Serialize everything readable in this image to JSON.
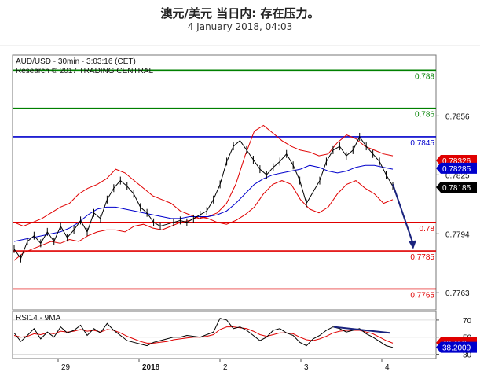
{
  "header": {
    "title": "澳元/美元 当日内: 存在压力。",
    "subtitle": "4 January 2018, 04:03"
  },
  "chart_info": {
    "line1": "AUD/USD - 30min - 3:03:16 (CET)",
    "line2": "Research © 2017 TRADING CENTRAL"
  },
  "rsi_info": {
    "label": "RSI14 - 9MA"
  },
  "colors": {
    "resistance": "#008000",
    "pivot": "#0000cc",
    "support": "#e00000",
    "bollinger": "#e00000",
    "ma": "#0000cc",
    "price": "#000000",
    "arrow": "#1a237e",
    "rsi_ma": "#e00000"
  },
  "chart_data": {
    "type": "line",
    "title": "澳元/美元 当日内: 存在压力。",
    "xlabel": "",
    "ylabel": "",
    "x_ticks": [
      "29",
      "2018",
      "2",
      "3",
      "4"
    ],
    "y_ticks": [
      "0.7856",
      "0.7825",
      "0.7794",
      "0.7763"
    ],
    "ylim": [
      0.7754,
      0.7888
    ],
    "levels": [
      {
        "label": "0.788",
        "value": 0.788,
        "kind": "resistance"
      },
      {
        "label": "0.786",
        "value": 0.786,
        "kind": "resistance"
      },
      {
        "label": "0.7845",
        "value": 0.7845,
        "kind": "pivot"
      },
      {
        "label": "0.78",
        "value": 0.78,
        "kind": "support"
      },
      {
        "label": "0.7785",
        "value": 0.7785,
        "kind": "support"
      },
      {
        "label": "0.7765",
        "value": 0.7765,
        "kind": "support"
      }
    ],
    "price_badges": [
      {
        "label": "0.78326",
        "value": 0.78326,
        "color": "#e00000"
      },
      {
        "label": "0.78285",
        "value": 0.78285,
        "color": "#0000cc"
      },
      {
        "label": "0.78185",
        "value": 0.78185,
        "color": "#000000"
      }
    ],
    "series": [
      {
        "name": "price",
        "values": [
          0.7786,
          0.7781,
          0.779,
          0.7793,
          0.7789,
          0.7795,
          0.779,
          0.7798,
          0.7792,
          0.7796,
          0.7801,
          0.7795,
          0.7805,
          0.7802,
          0.7812,
          0.7818,
          0.7822,
          0.7819,
          0.7815,
          0.7808,
          0.7805,
          0.78,
          0.7798,
          0.7799,
          0.78,
          0.7801,
          0.78,
          0.7802,
          0.7804,
          0.7806,
          0.7812,
          0.782,
          0.7832,
          0.784,
          0.7843,
          0.7838,
          0.7833,
          0.7828,
          0.7825,
          0.7829,
          0.7832,
          0.7836,
          0.783,
          0.7822,
          0.781,
          0.7816,
          0.7822,
          0.7832,
          0.7838,
          0.784,
          0.7835,
          0.7838,
          0.7845,
          0.784,
          0.7836,
          0.7832,
          0.7825,
          0.7819
        ]
      },
      {
        "name": "bollinger-upper",
        "values": [
          0.78,
          0.7798,
          0.78,
          0.7802,
          0.7805,
          0.7808,
          0.781,
          0.7815,
          0.7818,
          0.782,
          0.7823,
          0.7828,
          0.7826,
          0.7822,
          0.7818,
          0.7814,
          0.7812,
          0.781,
          0.7806,
          0.7804,
          0.7802,
          0.7803,
          0.7805,
          0.781,
          0.782,
          0.7835,
          0.7848,
          0.7851,
          0.7847,
          0.7843,
          0.784,
          0.7838,
          0.7837,
          0.7835,
          0.7836,
          0.7842,
          0.7846,
          0.7844,
          0.784,
          0.7838,
          0.7836,
          0.7835
        ]
      },
      {
        "name": "bollinger-lower",
        "values": [
          0.778,
          0.7784,
          0.7786,
          0.7788,
          0.779,
          0.7789,
          0.7791,
          0.779,
          0.7793,
          0.7795,
          0.7796,
          0.7796,
          0.7795,
          0.7798,
          0.7799,
          0.7797,
          0.7796,
          0.7798,
          0.78,
          0.7801,
          0.7803,
          0.7802,
          0.78,
          0.7799,
          0.7801,
          0.7804,
          0.7808,
          0.7815,
          0.782,
          0.7822,
          0.782,
          0.7812,
          0.7807,
          0.7805,
          0.7808,
          0.7815,
          0.782,
          0.7822,
          0.7818,
          0.7815,
          0.781,
          0.7812
        ]
      },
      {
        "name": "moving-average",
        "values": [
          0.779,
          0.7791,
          0.7792,
          0.7793,
          0.7794,
          0.7795,
          0.7797,
          0.78,
          0.7804,
          0.7807,
          0.7808,
          0.7808,
          0.7807,
          0.7806,
          0.7805,
          0.7804,
          0.7803,
          0.7802,
          0.7802,
          0.7803,
          0.7803,
          0.7803,
          0.7804,
          0.7806,
          0.781,
          0.7815,
          0.782,
          0.7823,
          0.7825,
          0.7826,
          0.7827,
          0.7828,
          0.783,
          0.7829,
          0.7827,
          0.7826,
          0.7827,
          0.7829,
          0.783,
          0.783,
          0.7829,
          0.7828
        ]
      }
    ],
    "forecast_arrow": {
      "from": 0.782,
      "to": 0.7786
    },
    "rsi": {
      "ylim": [
        25,
        80
      ],
      "y_ticks": [
        "70",
        "50",
        "30"
      ],
      "badges": [
        {
          "label": "43.413",
          "value": 43.413,
          "color": "#e00000"
        },
        {
          "label": "38.2009",
          "value": 38.2009,
          "color": "#0000cc"
        }
      ],
      "rsi_values": [
        55,
        45,
        52,
        60,
        48,
        56,
        50,
        62,
        55,
        58,
        64,
        52,
        60,
        55,
        66,
        58,
        52,
        46,
        44,
        42,
        40,
        44,
        46,
        48,
        50,
        50,
        52,
        51,
        50,
        53,
        56,
        72,
        70,
        60,
        62,
        58,
        52,
        46,
        50,
        58,
        60,
        55,
        52,
        44,
        40,
        48,
        52,
        58,
        62,
        60,
        56,
        58,
        60,
        54,
        50,
        45,
        40,
        38
      ],
      "ma_values": [
        52,
        50,
        51,
        54,
        53,
        55,
        54,
        57,
        56,
        57,
        59,
        57,
        58,
        56,
        59,
        58,
        55,
        51,
        48,
        45,
        43,
        43,
        44,
        45,
        47,
        48,
        49,
        50,
        50,
        51,
        53,
        59,
        62,
        62,
        61,
        60,
        57,
        53,
        51,
        53,
        55,
        55,
        54,
        50,
        47,
        46,
        48,
        51,
        55,
        57,
        58,
        58,
        58,
        56,
        54,
        50,
        46,
        43
      ],
      "divergence_line": {
        "from": 62,
        "to": 55
      }
    }
  }
}
